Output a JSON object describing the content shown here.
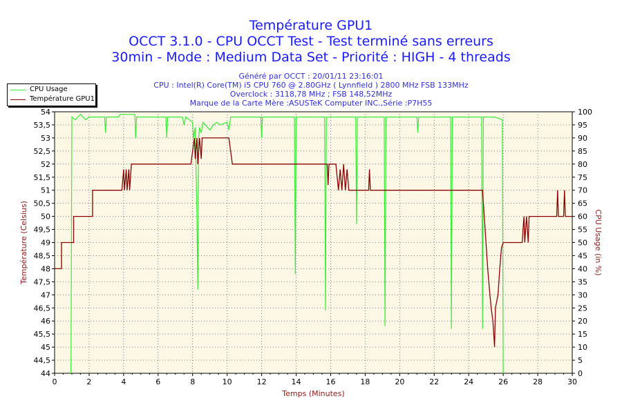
{
  "header": {
    "title": "Température GPU1",
    "subtitle": "OCCT 3.1.0 - CPU OCCT Test - Test terminé sans erreurs",
    "subtitle2": "30min - Mode : Medium Data Set - Priorité : HIGH - 4 threads",
    "generated": "Généré par OCCT : 20/01/11 23:16:01",
    "cpu": "CPU : Intel(R) Core(TM) i5 CPU 760 @ 2.80GHz ( Lynnfield ) 2800 MHz FSB 133MHz",
    "overclock": "Overclock : 3118,78 MHz ; FSB 148,52MHz",
    "board": "Marque de la Carte Mère :ASUSTeK Computer INC.,Série :P7H55"
  },
  "colors": {
    "cpu_usage": "#33ee33",
    "temperature": "#8b0000",
    "plot_bg": "#fdf7e6",
    "axis_label": "#8b1a1a",
    "title": "#1a1aff",
    "info": "#2f2fd6"
  },
  "chart_data": {
    "type": "line",
    "title": "Température GPU1",
    "xlabel": "Temps (Minutes)",
    "ylabel_left": "Température (Celsius)",
    "ylabel_right": "CPU Usage (in %)",
    "xlim": [
      0,
      30
    ],
    "ylim_left": [
      44,
      54
    ],
    "ylim_right": [
      0,
      100
    ],
    "grid": true,
    "legend_position": "top-left",
    "x_ticks": [
      "0",
      "2",
      "4",
      "6",
      "8",
      "10",
      "12",
      "14",
      "16",
      "18",
      "20",
      "22",
      "24",
      "26",
      "28",
      "30"
    ],
    "y_left_ticks": [
      "44",
      "44,5",
      "45",
      "45,5",
      "46",
      "46,5",
      "47",
      "47,5",
      "48",
      "48,5",
      "49",
      "49,5",
      "50",
      "50,5",
      "51",
      "51,5",
      "52",
      "52,5",
      "53",
      "53,5",
      "54"
    ],
    "y_right_ticks": [
      "0",
      "5",
      "10",
      "15",
      "20",
      "25",
      "30",
      "35",
      "40",
      "45",
      "50",
      "55",
      "60",
      "65",
      "70",
      "75",
      "80",
      "85",
      "90",
      "95",
      "100"
    ],
    "series": [
      {
        "name": "CPU Usage",
        "axis": "right",
        "base": 98,
        "points": [
          [
            0.95,
            0
          ],
          [
            1.0,
            98
          ],
          [
            1.2,
            97
          ],
          [
            1.5,
            99
          ],
          [
            1.8,
            97
          ],
          [
            2.0,
            98
          ],
          [
            2.9,
            98
          ],
          [
            2.95,
            92
          ],
          [
            3.0,
            98
          ],
          [
            3.7,
            98
          ],
          [
            3.8,
            99
          ],
          [
            4.3,
            99
          ],
          [
            4.65,
            99
          ],
          [
            4.7,
            90
          ],
          [
            4.75,
            98
          ],
          [
            6.0,
            98
          ],
          [
            6.1,
            98
          ],
          [
            6.45,
            98
          ],
          [
            6.5,
            90
          ],
          [
            6.55,
            98
          ],
          [
            7.4,
            98
          ],
          [
            7.5,
            95
          ],
          [
            7.6,
            98
          ],
          [
            8.0,
            96
          ],
          [
            8.05,
            90
          ],
          [
            8.15,
            94
          ],
          [
            8.25,
            60
          ],
          [
            8.3,
            32
          ],
          [
            8.35,
            90
          ],
          [
            8.4,
            94
          ],
          [
            8.5,
            92
          ],
          [
            8.6,
            96
          ],
          [
            9.0,
            93
          ],
          [
            9.2,
            95
          ],
          [
            9.4,
            96
          ],
          [
            9.6,
            95
          ],
          [
            10.0,
            96
          ],
          [
            10.1,
            93
          ],
          [
            10.2,
            98
          ],
          [
            10.6,
            98
          ],
          [
            10.7,
            98
          ],
          [
            11.95,
            98
          ],
          [
            12.0,
            90
          ],
          [
            12.05,
            98
          ],
          [
            13.0,
            98
          ],
          [
            13.9,
            98
          ],
          [
            13.95,
            38
          ],
          [
            14.0,
            98
          ],
          [
            15.0,
            98
          ],
          [
            15.65,
            98
          ],
          [
            15.7,
            24
          ],
          [
            15.75,
            98
          ],
          [
            16.6,
            98
          ],
          [
            17.45,
            98
          ],
          [
            17.5,
            57
          ],
          [
            17.55,
            98
          ],
          [
            18.0,
            98
          ],
          [
            19.1,
            98
          ],
          [
            19.15,
            18
          ],
          [
            19.2,
            98
          ],
          [
            21.0,
            98
          ],
          [
            21.05,
            92
          ],
          [
            21.1,
            98
          ],
          [
            22.0,
            98
          ],
          [
            22.95,
            98
          ],
          [
            23.0,
            17
          ],
          [
            23.05,
            98
          ],
          [
            24.2,
            98
          ],
          [
            24.75,
            98
          ],
          [
            24.8,
            17
          ],
          [
            24.85,
            98
          ],
          [
            25.5,
            98
          ],
          [
            25.95,
            97
          ],
          [
            26.0,
            0
          ]
        ]
      },
      {
        "name": "Température GPU1",
        "axis": "left",
        "points": [
          [
            0,
            48
          ],
          [
            0.4,
            48
          ],
          [
            0.4,
            49
          ],
          [
            1.1,
            49
          ],
          [
            1.1,
            50
          ],
          [
            2.2,
            50
          ],
          [
            2.2,
            51
          ],
          [
            3.9,
            51
          ],
          [
            4.0,
            51.8
          ],
          [
            4.05,
            51
          ],
          [
            4.15,
            51.8
          ],
          [
            4.2,
            51
          ],
          [
            4.3,
            51.8
          ],
          [
            4.35,
            51
          ],
          [
            4.45,
            52
          ],
          [
            7.9,
            52
          ],
          [
            8.0,
            52.5
          ],
          [
            8.1,
            53
          ],
          [
            8.15,
            52.2
          ],
          [
            8.25,
            53
          ],
          [
            8.3,
            52
          ],
          [
            8.4,
            53
          ],
          [
            8.5,
            52.2
          ],
          [
            8.55,
            53
          ],
          [
            10.1,
            53
          ],
          [
            10.2,
            52.5
          ],
          [
            10.3,
            52
          ],
          [
            15.8,
            52
          ],
          [
            15.85,
            51.2
          ],
          [
            15.9,
            52
          ],
          [
            16.3,
            52
          ],
          [
            16.45,
            51
          ],
          [
            16.55,
            51.8
          ],
          [
            16.65,
            51
          ],
          [
            16.75,
            52
          ],
          [
            16.85,
            51
          ],
          [
            16.95,
            51.8
          ],
          [
            17.05,
            51
          ],
          [
            17.2,
            51
          ],
          [
            18.2,
            51
          ],
          [
            18.25,
            51.8
          ],
          [
            18.3,
            51
          ],
          [
            24.8,
            51
          ],
          [
            24.9,
            50
          ],
          [
            25.0,
            49
          ],
          [
            25.1,
            48
          ],
          [
            25.2,
            47.2
          ],
          [
            25.3,
            46.5
          ],
          [
            25.4,
            46
          ],
          [
            25.5,
            45
          ],
          [
            25.55,
            46.5
          ],
          [
            25.7,
            47
          ],
          [
            25.8,
            48
          ],
          [
            25.9,
            48.8
          ],
          [
            26.0,
            49
          ],
          [
            27.1,
            49
          ],
          [
            27.2,
            50
          ],
          [
            27.25,
            49
          ],
          [
            27.35,
            50
          ],
          [
            27.45,
            49
          ],
          [
            27.5,
            50
          ],
          [
            27.6,
            50
          ],
          [
            28.0,
            50
          ],
          [
            29.1,
            50
          ],
          [
            29.15,
            51
          ],
          [
            29.2,
            50
          ],
          [
            29.5,
            50
          ],
          [
            29.55,
            51
          ],
          [
            29.6,
            50
          ],
          [
            30,
            50
          ]
        ]
      }
    ]
  }
}
